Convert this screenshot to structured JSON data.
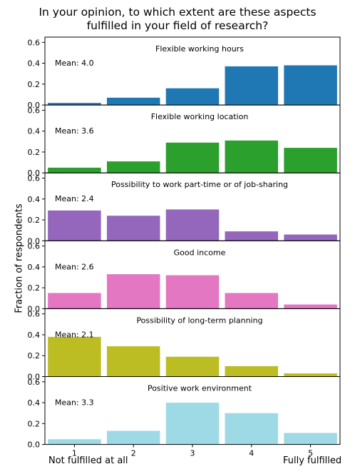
{
  "title_line1": "In your opinion, to which extent are these aspects",
  "title_line2": "fulfilled in your field of research?",
  "ylabel": "Fraction of respondents",
  "x_low_label": "Not fulfilled at all",
  "x_high_label": "Fully fulfilled",
  "chart_data": {
    "type": "bar",
    "categories": [
      "1",
      "2",
      "3",
      "4",
      "5"
    ],
    "ylim": [
      0,
      0.65
    ],
    "yticks": [
      "0.0",
      "0.2",
      "0.4",
      "0.6"
    ],
    "grid": false,
    "panels": [
      {
        "title": "Flexible working hours",
        "mean_label": "Mean: 4.0",
        "color": "#1f77b4",
        "values": [
          0.02,
          0.07,
          0.16,
          0.37,
          0.38
        ]
      },
      {
        "title": "Flexible working location",
        "mean_label": "Mean: 3.6",
        "color": "#2ca02c",
        "values": [
          0.05,
          0.11,
          0.29,
          0.31,
          0.24
        ]
      },
      {
        "title": "Possibility to work part-time or of job-sharing",
        "mean_label": "Mean: 2.4",
        "color": "#9467bd",
        "values": [
          0.29,
          0.24,
          0.3,
          0.09,
          0.06
        ]
      },
      {
        "title": "Good income",
        "mean_label": "Mean: 2.6",
        "color": "#e377c2",
        "values": [
          0.15,
          0.33,
          0.32,
          0.15,
          0.04
        ]
      },
      {
        "title": "Possibility of long-term planning",
        "mean_label": "Mean: 2.1",
        "color": "#bcbd22",
        "values": [
          0.38,
          0.29,
          0.19,
          0.1,
          0.03
        ]
      },
      {
        "title": "Positive work environment",
        "mean_label": "Mean: 3.3",
        "color": "#9edae5",
        "values": [
          0.05,
          0.13,
          0.4,
          0.3,
          0.11
        ]
      }
    ]
  }
}
